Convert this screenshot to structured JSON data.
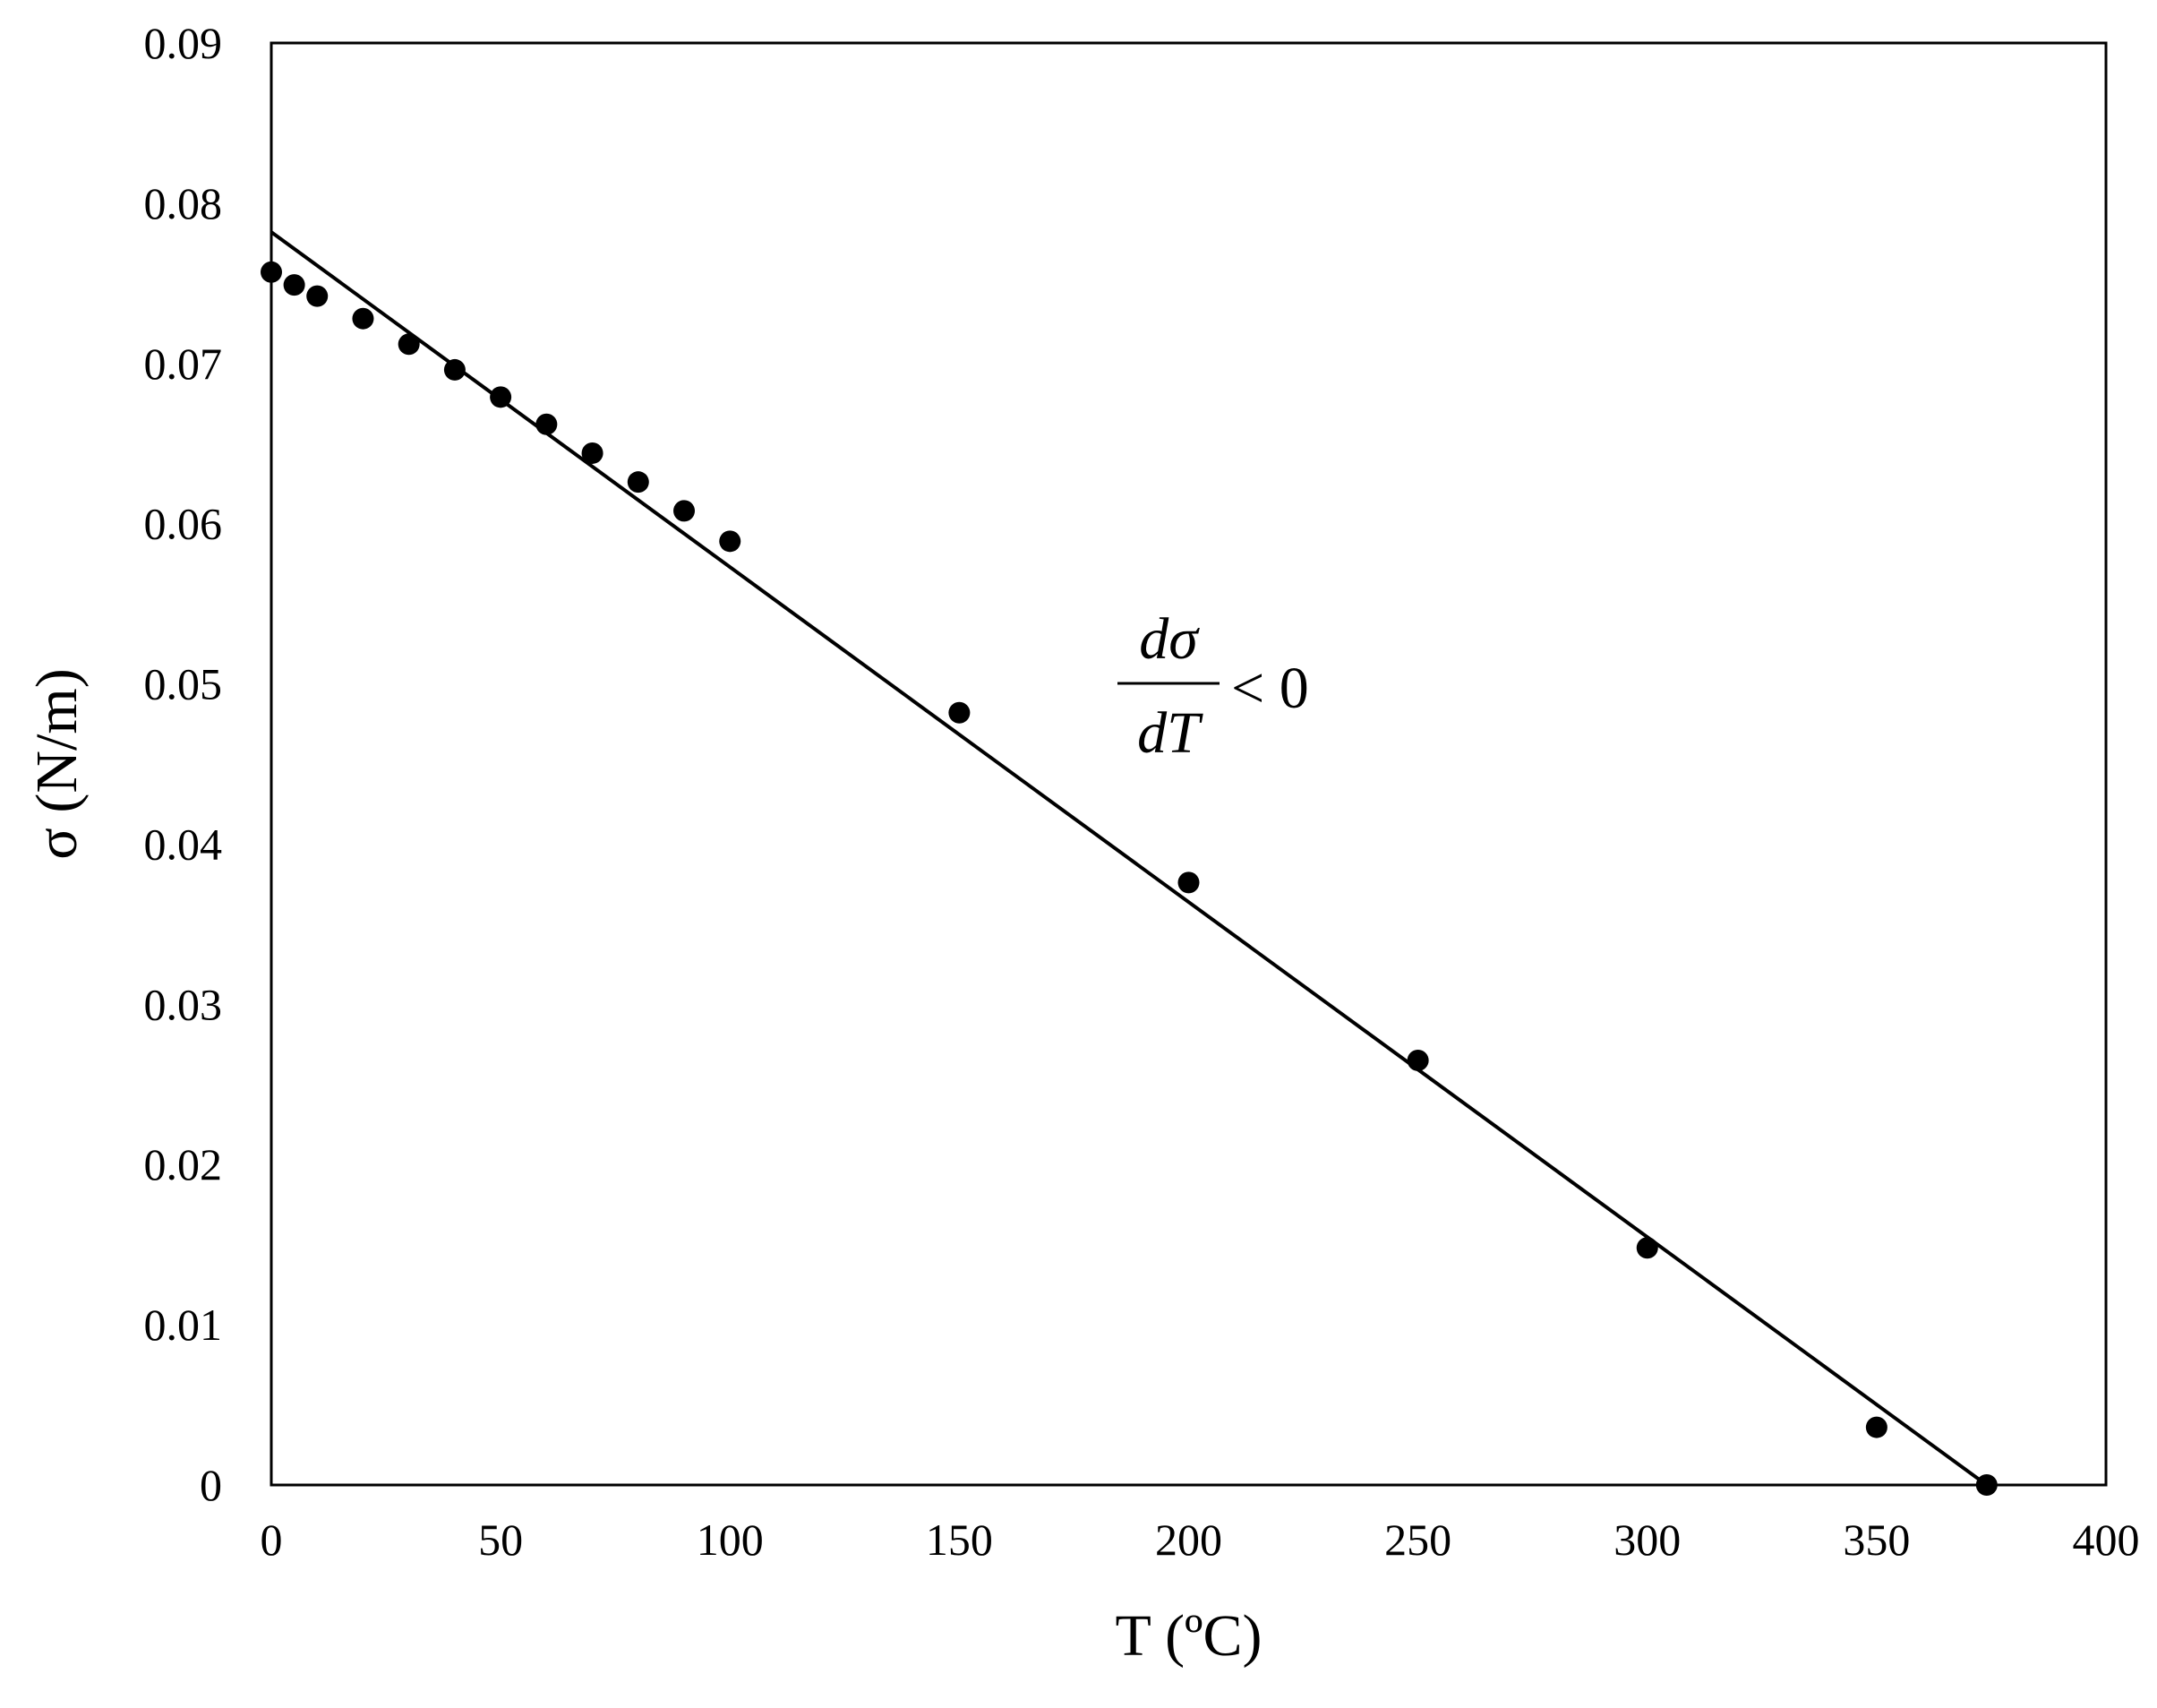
{
  "chart_data": {
    "type": "scatter",
    "title": "",
    "xlabel": "T (ºC)",
    "ylabel": "σ (N/m)",
    "xlim": [
      0,
      400
    ],
    "ylim": [
      0,
      0.09
    ],
    "x_ticks": [
      "0",
      "50",
      "100",
      "150",
      "200",
      "250",
      "300",
      "350",
      "400"
    ],
    "y_ticks": [
      "0",
      "0.01",
      "0.02",
      "0.03",
      "0.04",
      "0.05",
      "0.06",
      "0.07",
      "0.08",
      "0.09"
    ],
    "grid": false,
    "legend": "none",
    "series": [
      {
        "marker": "circle",
        "color": "#000000",
        "x": [
          0,
          5,
          10,
          20,
          30,
          40,
          50,
          60,
          70,
          80,
          90,
          100,
          150,
          200,
          250,
          300,
          350,
          374
        ],
        "y": [
          0.0757,
          0.0749,
          0.0742,
          0.0728,
          0.0712,
          0.0696,
          0.0679,
          0.0662,
          0.0644,
          0.0626,
          0.0608,
          0.0589,
          0.0482,
          0.0376,
          0.0265,
          0.0148,
          0.0036,
          0.0
        ]
      }
    ],
    "trendline": {
      "type": "linear",
      "color": "#000000",
      "x": [
        0,
        374
      ],
      "y": [
        0.0782,
        0.0
      ]
    },
    "annotation": {
      "numerator": "dσ",
      "denominator": "dT",
      "relation": "< 0"
    }
  }
}
